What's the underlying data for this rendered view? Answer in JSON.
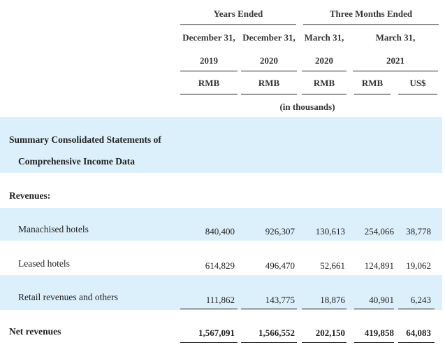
{
  "header": {
    "years_ended": "Years Ended",
    "three_months_ended": "Three Months Ended",
    "columns": [
      {
        "date": "December 31,",
        "year": "2019",
        "currency": "RMB"
      },
      {
        "date": "December 31,",
        "year": "2020",
        "currency": "RMB"
      },
      {
        "date": "March 31,",
        "year": "2020",
        "currency": "RMB"
      },
      {
        "date": "March 31,",
        "year": "2021",
        "currency": "RMB"
      },
      {
        "date": "",
        "year": "",
        "currency": "US$"
      }
    ],
    "units": "(in thousands)"
  },
  "section_title_line1": "Summary Consolidated Statements of",
  "section_title_line2": "Comprehensive Income Data",
  "revenues_label": "Revenues:",
  "rows": [
    {
      "label": "Manachised hotels",
      "values": [
        "840,400",
        "926,307",
        "130,613",
        "254,066",
        "38,778"
      ]
    },
    {
      "label": "Leased hotels",
      "values": [
        "614,829",
        "496,470",
        "52,661",
        "124,891",
        "19,062"
      ]
    },
    {
      "label": "Retail revenues and others",
      "values": [
        "111,862",
        "143,775",
        "18,876",
        "40,901",
        "6,243"
      ]
    }
  ],
  "net_revenues": {
    "label": "Net revenues",
    "values": [
      "1,567,091",
      "1,566,552",
      "202,150",
      "419,858",
      "64,083"
    ]
  }
}
